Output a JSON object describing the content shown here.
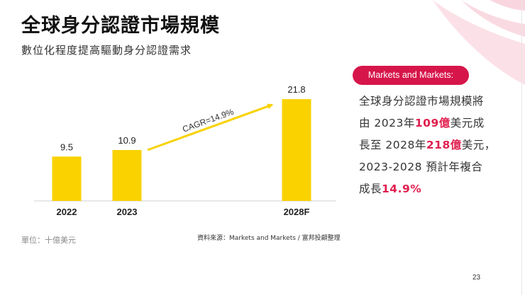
{
  "slide": {
    "title": "全球身分認證市場規模",
    "subtitle": "數位化程度提高驅動身分認證需求",
    "unit_label": "單位：十億美元",
    "source_label": "資料來源：Markets and Markets / 富邦投顧整理",
    "page_number": "23",
    "accent_color": "#d6164a",
    "bar_color": "#f9d200"
  },
  "callout": {
    "badge": "Markets and Markets:",
    "line1_a": "全球身分認證市場規模將",
    "line2_a": "由 2023年",
    "line2_b": "109億",
    "line2_c": "美元成",
    "line3_a": "長至 2028年",
    "line3_b": "218億",
    "line3_c": "美元，",
    "line4_a": "2023-2028 預計年複合",
    "line5_a": "成長",
    "line5_b": "14.9%"
  },
  "chart_data": {
    "type": "bar",
    "title": "",
    "xlabel": "",
    "ylabel": "",
    "categories": [
      "2022",
      "2023",
      "2028F"
    ],
    "values": [
      9.5,
      10.9,
      21.8
    ],
    "value_labels": [
      "9.5",
      "10.9",
      "21.8"
    ],
    "ylim": [
      0,
      24
    ],
    "grid": false,
    "annotation": "CAGR=14.9%"
  }
}
